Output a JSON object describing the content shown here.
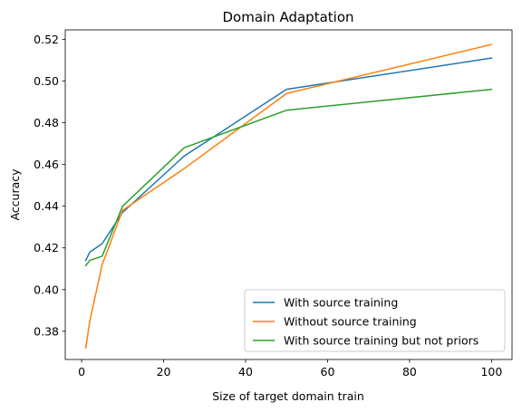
{
  "chart_data": {
    "type": "line",
    "title": "Domain Adaptation",
    "xlabel": "Size of target domain train",
    "ylabel": "Accuracy",
    "xlim": [
      -4,
      105
    ],
    "ylim": [
      0.3665,
      0.5245
    ],
    "xticks": [
      0,
      20,
      40,
      60,
      80,
      100
    ],
    "xtick_labels": [
      "0",
      "20",
      "40",
      "60",
      "80",
      "100"
    ],
    "yticks": [
      0.38,
      0.4,
      0.42,
      0.44,
      0.46,
      0.48,
      0.5,
      0.52
    ],
    "ytick_labels": [
      "0.38",
      "0.40",
      "0.42",
      "0.44",
      "0.46",
      "0.48",
      "0.50",
      "0.52"
    ],
    "grid": false,
    "legend_position": "lower-right",
    "x": [
      1,
      2,
      5,
      10,
      25,
      50,
      100
    ],
    "series": [
      {
        "name": "With source training",
        "color": "#1f77b4",
        "values": [
          0.414,
          0.418,
          0.422,
          0.437,
          0.464,
          0.496,
          0.511
        ]
      },
      {
        "name": "Without source training",
        "color": "#ff7f0e",
        "values": [
          0.372,
          0.385,
          0.412,
          0.438,
          0.458,
          0.494,
          0.5175
        ]
      },
      {
        "name": "With source training but not priors",
        "color": "#2ca02c",
        "values": [
          0.4115,
          0.414,
          0.416,
          0.44,
          0.468,
          0.486,
          0.496
        ]
      }
    ]
  }
}
